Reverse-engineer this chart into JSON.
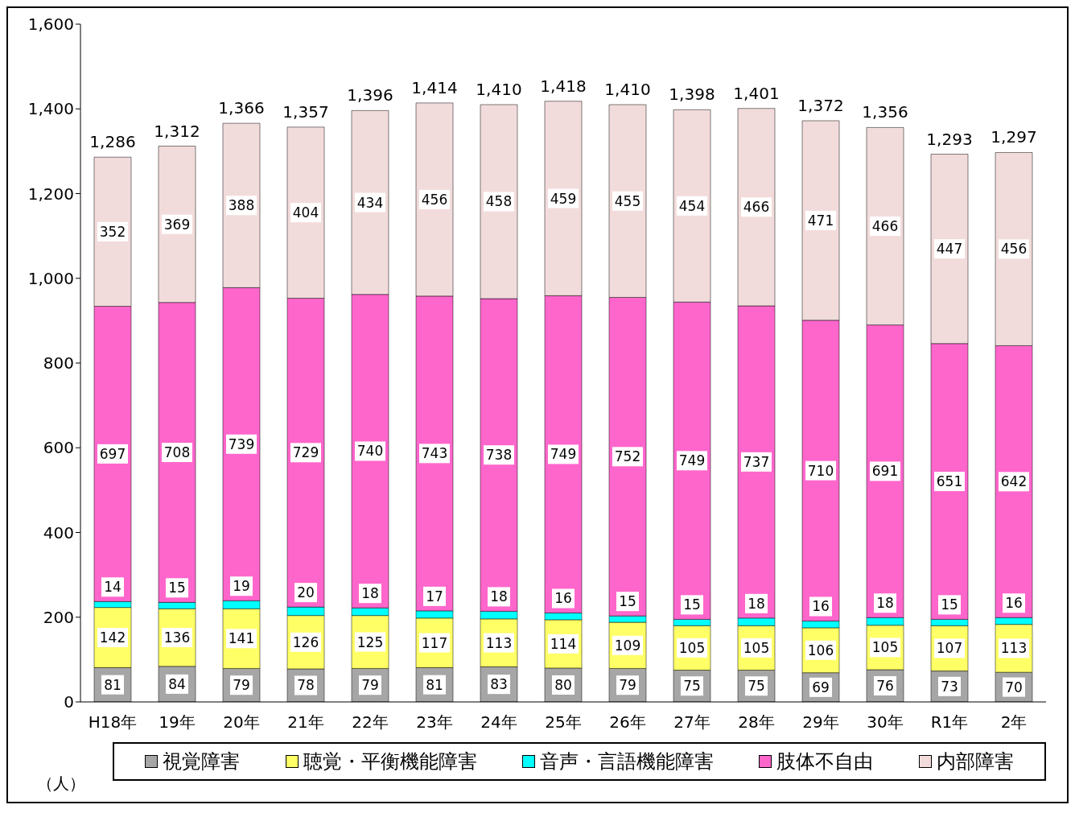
{
  "chart_data": {
    "type": "bar",
    "stacked": true,
    "ylabel": "（人）",
    "categories": [
      "H18年",
      "19年",
      "20年",
      "21年",
      "22年",
      "23年",
      "24年",
      "25年",
      "26年",
      "27年",
      "28年",
      "29年",
      "30年",
      "R1年",
      "2年"
    ],
    "series": [
      {
        "name": "視覚障害",
        "color": "#a6a6a6",
        "values": [
          81,
          84,
          79,
          78,
          79,
          81,
          83,
          80,
          79,
          75,
          75,
          69,
          76,
          73,
          70
        ]
      },
      {
        "name": "聴覚・平衡機能障害",
        "color": "#ffff66",
        "values": [
          142,
          136,
          141,
          126,
          125,
          117,
          113,
          114,
          109,
          105,
          105,
          106,
          105,
          107,
          113
        ]
      },
      {
        "name": "音声・言語機能障害",
        "color": "#00ffff",
        "values": [
          14,
          15,
          19,
          20,
          18,
          17,
          18,
          16,
          15,
          15,
          18,
          16,
          18,
          15,
          16
        ]
      },
      {
        "name": "肢体不自由",
        "color": "#ff66cc",
        "values": [
          697,
          708,
          739,
          729,
          740,
          743,
          738,
          749,
          752,
          749,
          737,
          710,
          691,
          651,
          642
        ]
      },
      {
        "name": "内部障害",
        "color": "#f2dcdb",
        "values": [
          352,
          369,
          388,
          404,
          434,
          456,
          458,
          459,
          455,
          454,
          466,
          471,
          466,
          447,
          456
        ]
      }
    ],
    "totals": [
      "1,286",
      "1,312",
      "1,366",
      "1,357",
      "1,396",
      "1,414",
      "1,410",
      "1,418",
      "1,410",
      "1,398",
      "1,401",
      "1,372",
      "1,356",
      "1,293",
      "1,297"
    ],
    "data_labels": true,
    "ylim": [
      0,
      1600
    ],
    "yticks": [
      0,
      {
        "value": 200,
        "label": "200"
      },
      {
        "value": 400,
        "label": "400"
      },
      {
        "value": 600,
        "label": "600"
      },
      {
        "value": 800,
        "label": "800"
      },
      {
        "value": 1000,
        "label": "1,000"
      },
      {
        "value": 1200,
        "label": "1,200"
      },
      {
        "value": 1400,
        "label": "1,400"
      },
      {
        "value": 1600,
        "label": "1,600"
      }
    ],
    "grid": false,
    "legend": "bottom"
  }
}
